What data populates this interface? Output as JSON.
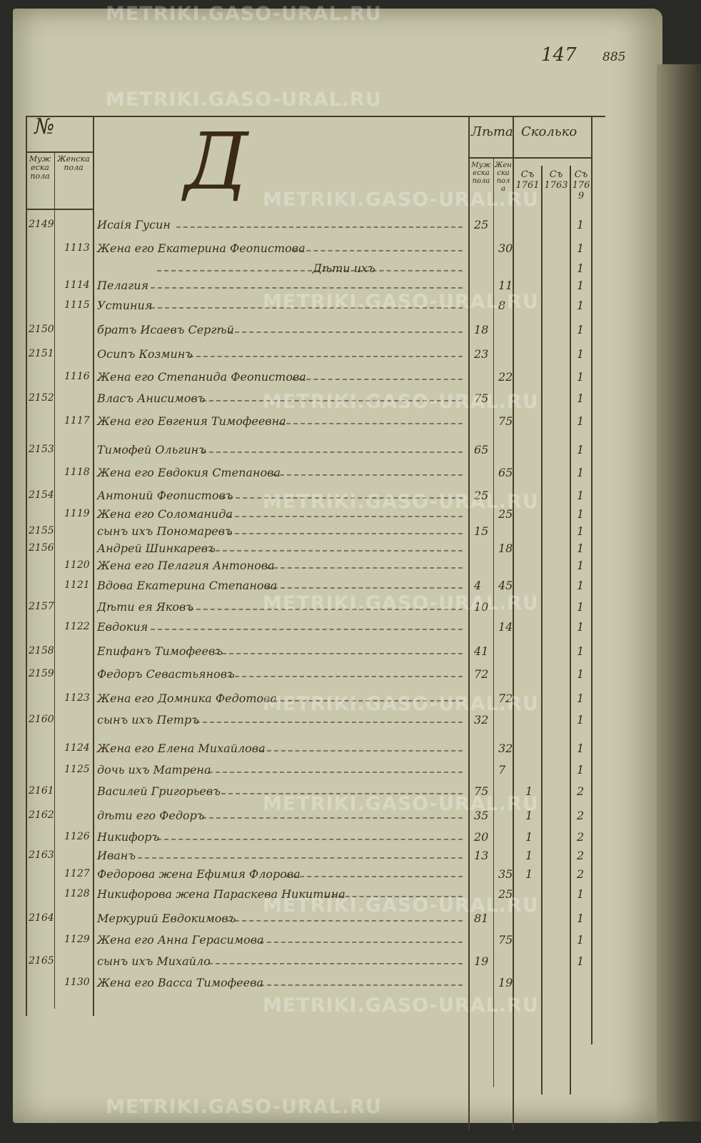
{
  "page_numbers": {
    "folio": "147",
    "archive": "885"
  },
  "watermark": "METRIKI.GASO-URAL.RU",
  "header": {
    "number_heading": "№",
    "male_col": "Мужеска пола",
    "female_col": "Женска пола",
    "section_letter": "Д",
    "age_heading": "Лѣта",
    "count_heading": "Сколько",
    "age_male": "Мужеска пола",
    "age_female": "Женска пола",
    "years": [
      "Съ 1761",
      "Съ 1763",
      "Съ 1769"
    ]
  },
  "rows": [
    {
      "m": "2149",
      "f": "",
      "name": "Исаія Гусин",
      "am": "25",
      "af": "",
      "y1": "",
      "y2": "",
      "y3": "1"
    },
    {
      "m": "",
      "f": "1113",
      "name": "Жена его Екатерина Феопистова",
      "am": "",
      "af": "30",
      "y1": "",
      "y2": "",
      "y3": "1"
    },
    {
      "m": "",
      "f": "",
      "name": "Дѣти ихъ",
      "am": "",
      "af": "",
      "y1": "",
      "y2": "",
      "y3": "1"
    },
    {
      "m": "",
      "f": "1114",
      "name": "Пелагия",
      "am": "",
      "af": "11",
      "y1": "",
      "y2": "",
      "y3": "1"
    },
    {
      "m": "",
      "f": "1115",
      "name": "Устиния",
      "am": "",
      "af": "8",
      "y1": "",
      "y2": "",
      "y3": "1"
    },
    {
      "m": "2150",
      "f": "",
      "name": "братъ Исаевъ Сергѣй",
      "am": "18",
      "af": "",
      "y1": "",
      "y2": "",
      "y3": "1"
    },
    {
      "m": "2151",
      "f": "",
      "name": "Осипъ Козминъ",
      "am": "23",
      "af": "",
      "y1": "",
      "y2": "",
      "y3": "1"
    },
    {
      "m": "",
      "f": "1116",
      "name": "Жена его Степанида Феопистова",
      "am": "",
      "af": "22",
      "y1": "",
      "y2": "",
      "y3": "1"
    },
    {
      "m": "2152",
      "f": "",
      "name": "Власъ Анисимовъ",
      "am": "75",
      "af": "",
      "y1": "",
      "y2": "",
      "y3": "1"
    },
    {
      "m": "",
      "f": "1117",
      "name": "Жена его Евгения Тимофеевна",
      "am": "",
      "af": "75",
      "y1": "",
      "y2": "",
      "y3": "1"
    },
    {
      "m": "2153",
      "f": "",
      "name": "Тимофей Ольгинъ",
      "am": "65",
      "af": "",
      "y1": "",
      "y2": "",
      "y3": "1"
    },
    {
      "m": "",
      "f": "1118",
      "name": "Жена его Евдокия Степанова",
      "am": "",
      "af": "65",
      "y1": "",
      "y2": "",
      "y3": "1"
    },
    {
      "m": "2154",
      "f": "",
      "name": "Антоний Феопистовъ",
      "am": "25",
      "af": "",
      "y1": "",
      "y2": "",
      "y3": "1"
    },
    {
      "m": "",
      "f": "1119",
      "name": "Жена его Соломанида",
      "am": "",
      "af": "25",
      "y1": "",
      "y2": "",
      "y3": "1"
    },
    {
      "m": "2155",
      "f": "",
      "name": "сынъ ихъ Пономаревъ",
      "am": "15",
      "af": "",
      "y1": "",
      "y2": "",
      "y3": "1"
    },
    {
      "m": "2156",
      "f": "",
      "name": "Андрей Шинкаревъ",
      "am": "",
      "af": "18",
      "y1": "",
      "y2": "",
      "y3": "1"
    },
    {
      "m": "",
      "f": "1120",
      "name": "Жена его Пелагия Антонова",
      "am": "",
      "af": "",
      "y1": "",
      "y2": "",
      "y3": "1"
    },
    {
      "m": "",
      "f": "1121",
      "name": "Вдова Екатерина Степанова",
      "am": "4",
      "af": "45",
      "y1": "",
      "y2": "",
      "y3": "1"
    },
    {
      "m": "2157",
      "f": "",
      "name": "Дѣти ея Яковъ",
      "am": "10",
      "af": "",
      "y1": "",
      "y2": "",
      "y3": "1"
    },
    {
      "m": "",
      "f": "1122",
      "name": "Евдокия",
      "am": "",
      "af": "14",
      "y1": "",
      "y2": "",
      "y3": "1"
    },
    {
      "m": "2158",
      "f": "",
      "name": "Епифанъ Тимофеевъ",
      "am": "41",
      "af": "",
      "y1": "",
      "y2": "",
      "y3": "1"
    },
    {
      "m": "2159",
      "f": "",
      "name": "Федоръ Севастьяновъ",
      "am": "72",
      "af": "",
      "y1": "",
      "y2": "",
      "y3": "1"
    },
    {
      "m": "",
      "f": "1123",
      "name": "Жена его Домника Федотова",
      "am": "",
      "af": "72",
      "y1": "",
      "y2": "",
      "y3": "1"
    },
    {
      "m": "2160",
      "f": "",
      "name": "сынъ ихъ Петръ",
      "am": "32",
      "af": "",
      "y1": "",
      "y2": "",
      "y3": "1"
    },
    {
      "m": "",
      "f": "1124",
      "name": "Жена его Елена Михайлова",
      "am": "",
      "af": "32",
      "y1": "",
      "y2": "",
      "y3": "1"
    },
    {
      "m": "",
      "f": "1125",
      "name": "дочь ихъ Матрена",
      "am": "",
      "af": "7",
      "y1": "",
      "y2": "",
      "y3": "1"
    },
    {
      "m": "2161",
      "f": "",
      "name": "Василей Григорьевъ",
      "am": "75",
      "af": "",
      "y1": "1",
      "y2": "",
      "y3": "2"
    },
    {
      "m": "2162",
      "f": "",
      "name": "дѣти его Федоръ",
      "am": "35",
      "af": "",
      "y1": "1",
      "y2": "",
      "y3": "2"
    },
    {
      "m": "",
      "f": "1126",
      "name": "Никифоръ",
      "am": "20",
      "af": "",
      "y1": "1",
      "y2": "",
      "y3": "2"
    },
    {
      "m": "2163",
      "f": "",
      "name": "Иванъ",
      "am": "13",
      "af": "",
      "y1": "1",
      "y2": "",
      "y3": "2"
    },
    {
      "m": "",
      "f": "1127",
      "name": "Федорова жена Ефимия Флорова",
      "am": "",
      "af": "35",
      "y1": "1",
      "y2": "",
      "y3": "2"
    },
    {
      "m": "",
      "f": "1128",
      "name": "Никифорова жена Параскева Никитина",
      "am": "",
      "af": "25",
      "y1": "",
      "y2": "",
      "y3": "1"
    },
    {
      "m": "2164",
      "f": "",
      "name": "Меркурий Евдокимовъ",
      "am": "81",
      "af": "",
      "y1": "",
      "y2": "",
      "y3": "1"
    },
    {
      "m": "",
      "f": "1129",
      "name": "Жена его Анна Герасимова",
      "am": "",
      "af": "75",
      "y1": "",
      "y2": "",
      "y3": "1"
    },
    {
      "m": "2165",
      "f": "",
      "name": "сынъ ихъ Михайло",
      "am": "19",
      "af": "",
      "y1": "",
      "y2": "",
      "y3": "1"
    },
    {
      "m": "",
      "f": "1130",
      "name": "Жена его Васса Тимофеева",
      "am": "",
      "af": "19",
      "y1": "",
      "y2": "",
      "y3": ""
    }
  ]
}
